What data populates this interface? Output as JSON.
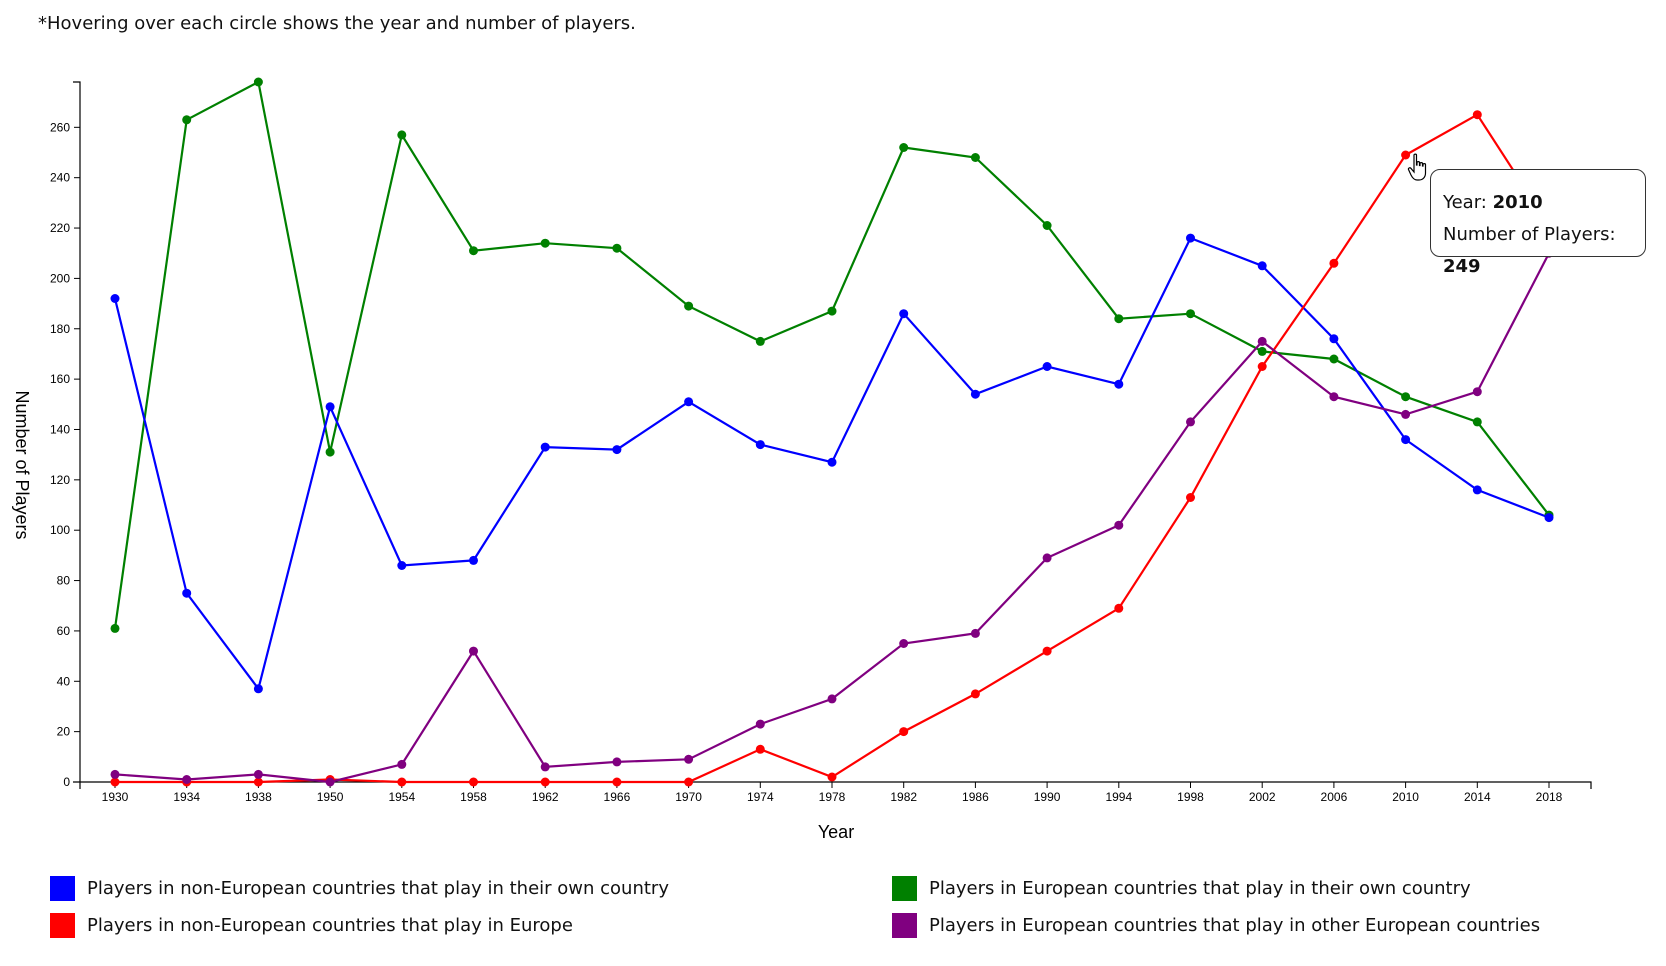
{
  "note": "*Hovering over each circle shows the year and number of players.",
  "chart_data": {
    "type": "line",
    "x": [
      "1930",
      "1934",
      "1938",
      "1950",
      "1954",
      "1958",
      "1962",
      "1966",
      "1970",
      "1974",
      "1978",
      "1982",
      "1986",
      "1990",
      "1994",
      "1998",
      "2002",
      "2006",
      "2010",
      "2014",
      "2018"
    ],
    "xlabel": "Year",
    "ylabel": "Number of Players",
    "ylim": [
      0,
      278
    ],
    "yticks": [
      0,
      20,
      40,
      60,
      80,
      100,
      120,
      140,
      160,
      180,
      200,
      220,
      240,
      260
    ],
    "grid": false,
    "legend_position": "bottom",
    "series": [
      {
        "name": "Players in non-European countries that play in their own country",
        "color": "#0000ff",
        "values": [
          192,
          75,
          37,
          149,
          86,
          88,
          133,
          132,
          151,
          134,
          127,
          186,
          154,
          165,
          158,
          216,
          205,
          176,
          136,
          116,
          105
        ]
      },
      {
        "name": "Players in non-European countries that play in Europe",
        "color": "#ff0000",
        "values": [
          0,
          0,
          0,
          1,
          0,
          0,
          0,
          0,
          0,
          13,
          2,
          20,
          35,
          52,
          69,
          113,
          165,
          206,
          249,
          265,
          221
        ]
      },
      {
        "name": "Players in European countries that play in their own country",
        "color": "#008000",
        "values": [
          61,
          263,
          278,
          131,
          257,
          211,
          214,
          212,
          189,
          175,
          187,
          252,
          248,
          221,
          184,
          186,
          171,
          168,
          153,
          143,
          106
        ]
      },
      {
        "name": "Players in European countries that play in other European countries",
        "color": "#800080",
        "values": [
          3,
          1,
          3,
          0,
          7,
          52,
          6,
          8,
          9,
          23,
          33,
          55,
          59,
          89,
          102,
          143,
          175,
          153,
          146,
          155,
          210
        ]
      }
    ],
    "legend_order": [
      0,
      2,
      1,
      3
    ]
  },
  "tooltip": {
    "year_label": "Year:",
    "year_value": "2010",
    "players_label": "Number of Players:",
    "players_value": "249"
  }
}
